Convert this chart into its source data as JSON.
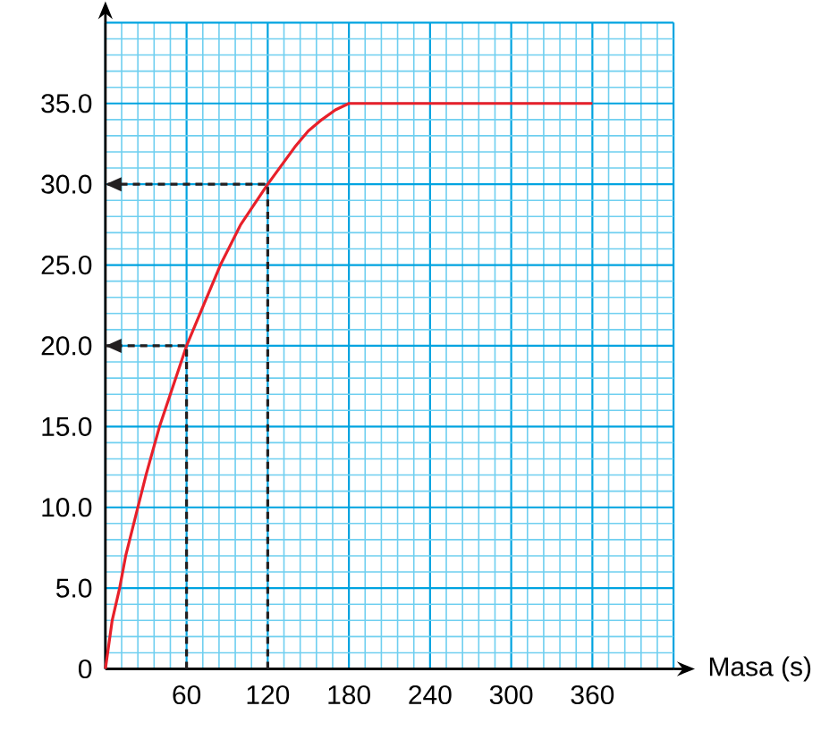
{
  "chart_data": {
    "type": "line",
    "xlabel": "Masa (s)",
    "x": [
      0,
      5,
      10.5,
      15,
      24,
      30,
      40,
      50,
      60,
      75,
      85,
      100,
      120,
      140,
      150,
      160,
      170,
      180,
      360
    ],
    "series": [
      {
        "color": "#e8202a",
        "values": [
          0,
          3,
          5,
          7,
          10,
          12,
          15,
          17.5,
          20,
          23,
          25,
          27.5,
          30,
          32.3,
          33.3,
          34,
          34.6,
          35,
          35
        ]
      },
      {
        "type": "line",
        "x": [
          60,
          60,
          0
        ],
        "values": [
          0,
          20,
          20
        ],
        "color": "#231f20",
        "line_style": "dashed"
      },
      {
        "type": "line",
        "x": [
          120,
          120,
          0
        ],
        "values": [
          0,
          30,
          30
        ],
        "color": "#231f20",
        "line_style": "dashed"
      }
    ],
    "xlim": [
      0,
      420
    ],
    "ylim": [
      0,
      40
    ],
    "xticks": [
      {
        "value": 0,
        "label": null
      },
      {
        "value": 12,
        "label": null
      },
      {
        "value": 24,
        "label": null
      },
      {
        "value": 36,
        "label": null
      },
      {
        "value": 48,
        "label": null
      },
      60,
      {
        "value": 72,
        "label": null
      },
      {
        "value": 84,
        "label": null
      },
      {
        "value": 96,
        "label": null
      },
      {
        "value": 108,
        "label": null
      },
      120,
      {
        "value": 132,
        "label": null
      },
      {
        "value": 144,
        "label": null
      },
      {
        "value": 156,
        "label": null
      },
      {
        "value": 168,
        "label": null
      },
      180,
      {
        "value": 192,
        "label": null
      },
      {
        "value": 204,
        "label": null
      },
      {
        "value": 216,
        "label": null
      },
      {
        "value": 228,
        "label": null
      },
      240,
      {
        "value": 252,
        "label": null
      },
      {
        "value": 264,
        "label": null
      },
      {
        "value": 276,
        "label": null
      },
      {
        "value": 288,
        "label": null
      },
      300,
      {
        "value": 312,
        "label": null
      },
      {
        "value": 324,
        "label": null
      },
      {
        "value": 336,
        "label": null
      },
      {
        "value": 348,
        "label": null
      },
      360,
      {
        "value": 372,
        "label": null
      },
      {
        "value": 384,
        "label": null
      },
      {
        "value": 396,
        "label": null
      },
      {
        "value": 408,
        "label": null
      },
      {
        "value": 420,
        "label": null
      }
    ],
    "yticks": [
      0,
      {
        "value": 1,
        "label": null
      },
      {
        "value": 2,
        "label": null
      },
      {
        "value": 3,
        "label": null
      },
      {
        "value": 4,
        "label": null
      },
      {
        "value": 5,
        "label": "5.0"
      },
      {
        "value": 6,
        "label": null
      },
      {
        "value": 7,
        "label": null
      },
      {
        "value": 8,
        "label": null
      },
      {
        "value": 9,
        "label": null
      },
      {
        "value": 10,
        "label": "10.0"
      },
      {
        "value": 11,
        "label": null
      },
      {
        "value": 12,
        "label": null
      },
      {
        "value": 13,
        "label": null
      },
      {
        "value": 14,
        "label": null
      },
      {
        "value": 15,
        "label": "15.0"
      },
      {
        "value": 16,
        "label": null
      },
      {
        "value": 17,
        "label": null
      },
      {
        "value": 18,
        "label": null
      },
      {
        "value": 19,
        "label": null
      },
      {
        "value": 20,
        "label": "20.0"
      },
      {
        "value": 21,
        "label": null
      },
      {
        "value": 22,
        "label": null
      },
      {
        "value": 23,
        "label": null
      },
      {
        "value": 24,
        "label": null
      },
      {
        "value": 25,
        "label": "25.0"
      },
      {
        "value": 26,
        "label": null
      },
      {
        "value": 27,
        "label": null
      },
      {
        "value": 28,
        "label": null
      },
      {
        "value": 29,
        "label": null
      },
      {
        "value": 30,
        "label": "30.0"
      },
      {
        "value": 31,
        "label": null
      },
      {
        "value": 32,
        "label": null
      },
      {
        "value": 33,
        "label": null
      },
      {
        "value": 34,
        "label": null
      },
      {
        "value": 35,
        "label": "35.0"
      },
      {
        "value": 36,
        "label": null
      },
      {
        "value": 37,
        "label": null
      },
      {
        "value": 38,
        "label": null
      },
      {
        "value": 39,
        "label": null
      },
      {
        "value": 40,
        "label": null
      }
    ],
    "grid": true,
    "marker": "none"
  }
}
